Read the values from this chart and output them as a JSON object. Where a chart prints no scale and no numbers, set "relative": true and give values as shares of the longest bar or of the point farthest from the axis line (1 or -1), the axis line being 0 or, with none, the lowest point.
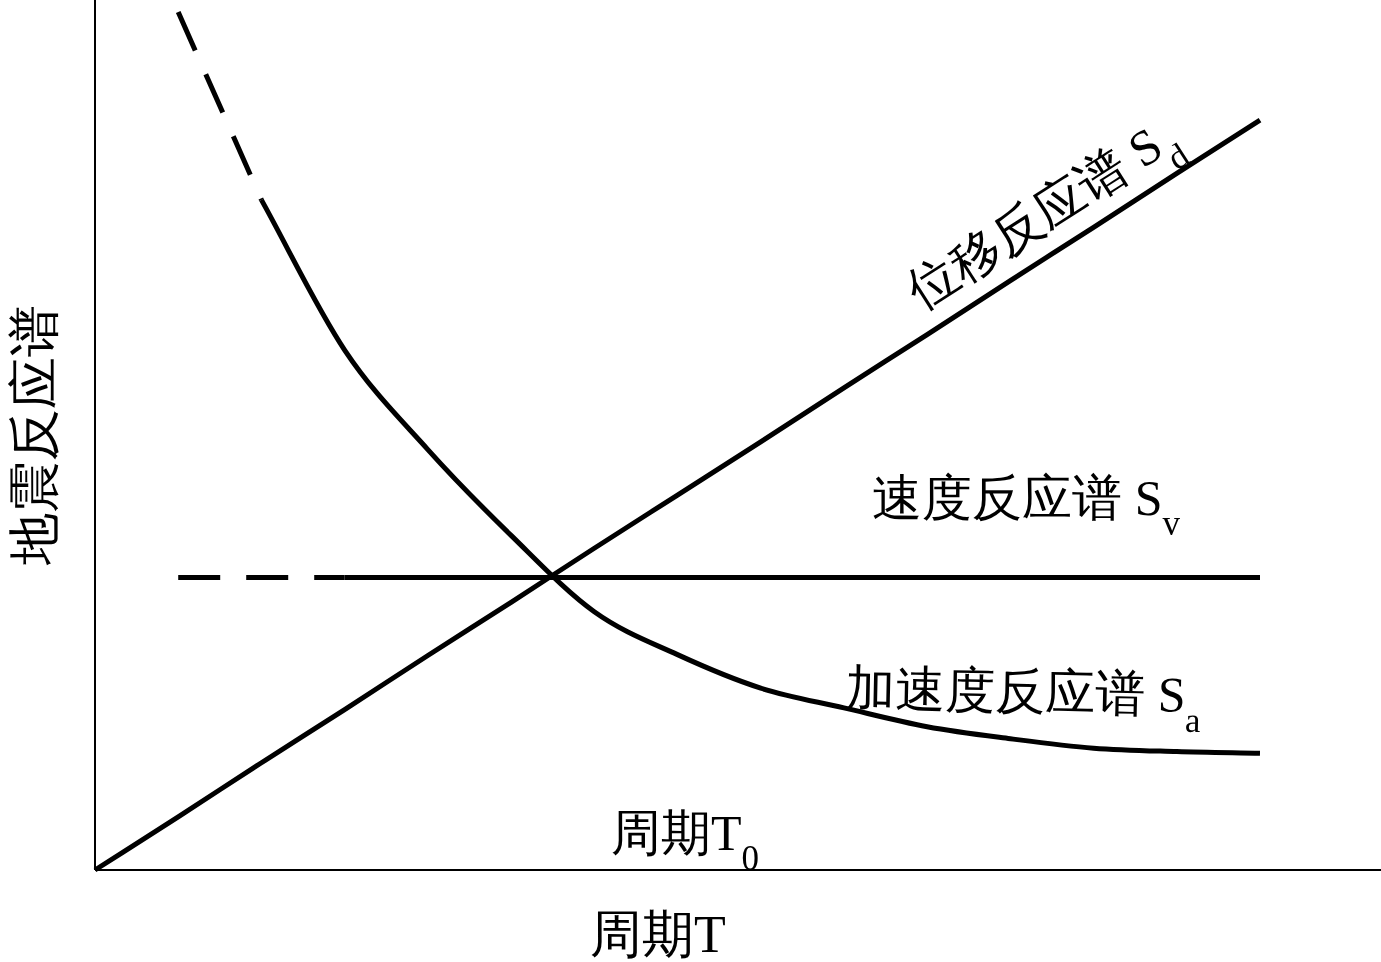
{
  "chart_data": {
    "type": "line",
    "relative": true,
    "xlabel": "周期T",
    "ylabel": "地震反应谱",
    "annotations": [
      "周期T$_{0}$"
    ],
    "marker": "none",
    "categories": [
      null,
      null,
      null,
      null,
      null,
      null,
      null,
      null,
      null,
      null,
      null,
      null,
      null,
      null,
      null
    ],
    "series": [
      {
        "color": "#000000",
        "line_style": "dashed",
        "values": [
          null,
          1.0,
          0.781,
          null,
          null,
          null,
          null,
          null,
          null,
          null,
          null,
          null,
          null,
          null,
          null
        ]
      },
      {
        "name": "加速度反应谱 S$_{a}$",
        "color": "#000000",
        "line_style": "solid",
        "values": [
          null,
          null,
          0.781,
          0.606,
          0.49,
          0.39,
          0.301,
          0.251,
          0.212,
          0.189,
          0.167,
          0.153,
          0.142,
          0.138,
          0.136
        ]
      },
      {
        "color": "#000000",
        "line_style": "dashed",
        "values": [
          null,
          0.341,
          0.341,
          0.341,
          null,
          null,
          null,
          null,
          null,
          null,
          null,
          null,
          null,
          null,
          null
        ]
      },
      {
        "name": "速度反应谱 S$_{v}$",
        "color": "#000000",
        "line_style": "solid",
        "values": [
          null,
          null,
          null,
          0.341,
          0.341,
          0.341,
          0.341,
          0.341,
          0.341,
          0.341,
          0.341,
          0.341,
          0.341,
          0.341,
          0.341
        ]
      },
      {
        "name": "位移反应谱 S$_{d}$",
        "color": "#000000",
        "line_style": "solid",
        "values": [
          0,
          0.062,
          0.125,
          0.187,
          0.25,
          0.312,
          0.375,
          0.437,
          0.499,
          0.562,
          0.624,
          0.687,
          0.749,
          0.812,
          0.874
        ]
      }
    ]
  }
}
